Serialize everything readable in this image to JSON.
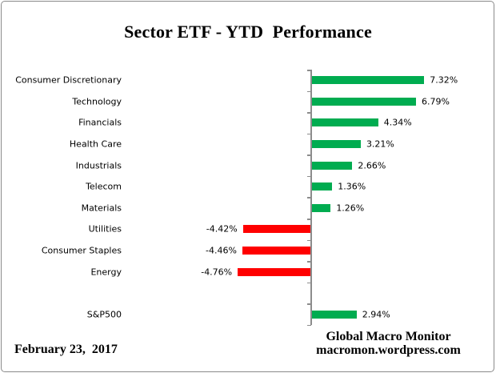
{
  "title": "Sector ETF - YTD  Performance",
  "footer": {
    "date": "February 23,  2017",
    "attribution_line1": "Global Macro Monitor",
    "attribution_line2": "macromon.wordpress.com"
  },
  "colors": {
    "positive": "#00AC50",
    "negative": "#FF0000",
    "axis": "#8C8C8C",
    "frame_border": "#8A8A8A",
    "text": "#000000"
  },
  "chart_data": {
    "type": "bar",
    "orientation": "horizontal",
    "title": "Sector ETF - YTD  Performance",
    "value_unit": "%",
    "xlim": [
      -4.76,
      7.32
    ],
    "gridlines": false,
    "legend": false,
    "value_axis_labels": false,
    "data_labels": true,
    "rows": [
      {
        "label": "Consumer Discretionary",
        "value": 7.32,
        "display": "7.32%"
      },
      {
        "label": "Technology",
        "value": 6.79,
        "display": "6.79%"
      },
      {
        "label": "Financials",
        "value": 4.34,
        "display": "4.34%"
      },
      {
        "label": "Health Care",
        "value": 3.21,
        "display": "3.21%"
      },
      {
        "label": "Industrials",
        "value": 2.66,
        "display": "2.66%"
      },
      {
        "label": "Telecom",
        "value": 1.36,
        "display": "1.36%"
      },
      {
        "label": "Materials",
        "value": 1.26,
        "display": "1.26%"
      },
      {
        "label": "Utilities",
        "value": -4.42,
        "display": "-4.42%"
      },
      {
        "label": "Consumer Staples",
        "value": -4.46,
        "display": "-4.46%"
      },
      {
        "label": "Energy",
        "value": -4.76,
        "display": "-4.76%"
      },
      {
        "label": "",
        "value": null,
        "display": ""
      },
      {
        "label": "S&P500",
        "value": 2.94,
        "display": "2.94%"
      }
    ]
  }
}
